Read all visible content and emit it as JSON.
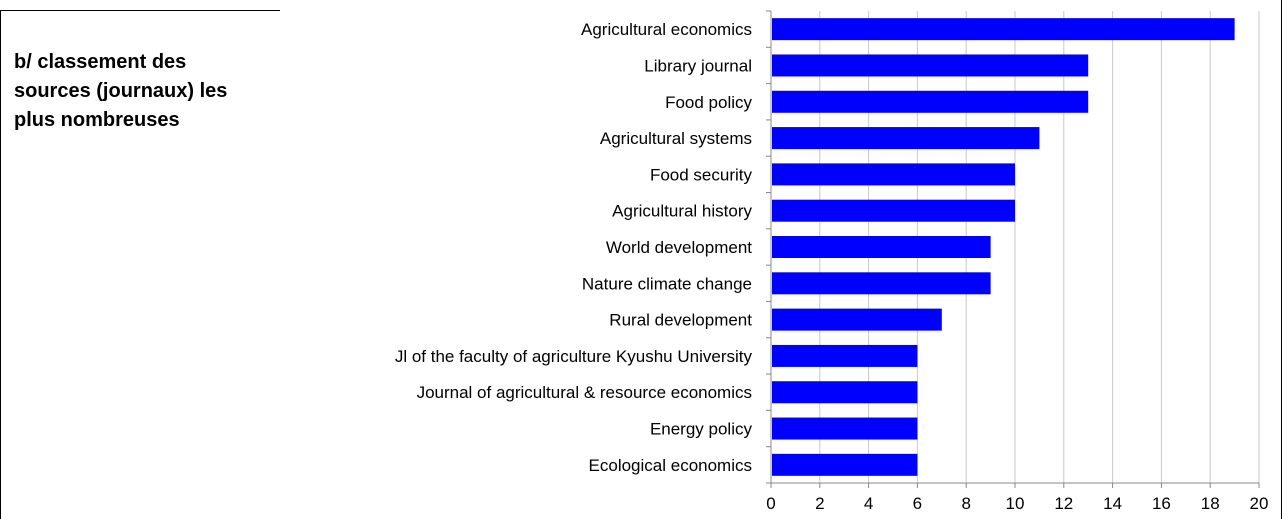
{
  "side_title": "b/ classement des sources (journaux) les plus nombreuses",
  "chart_data": {
    "type": "bar",
    "orientation": "horizontal",
    "categories": [
      "Agricultural economics",
      "Library journal",
      "Food policy",
      "Agricultural systems",
      "Food security",
      "Agricultural history",
      "World development",
      "Nature climate change",
      "Rural development",
      "Jl of the faculty of agriculture Kyushu University",
      "Journal of agricultural & resource economics",
      "Energy policy",
      "Ecological economics"
    ],
    "values": [
      19,
      13,
      13,
      11,
      10,
      10,
      9,
      9,
      7,
      6,
      6,
      6,
      6
    ],
    "xlim": [
      0,
      20
    ],
    "xticks": [
      0,
      2,
      4,
      6,
      8,
      10,
      12,
      14,
      16,
      18,
      20
    ],
    "grid": true,
    "bar_color": "#0000ff"
  }
}
